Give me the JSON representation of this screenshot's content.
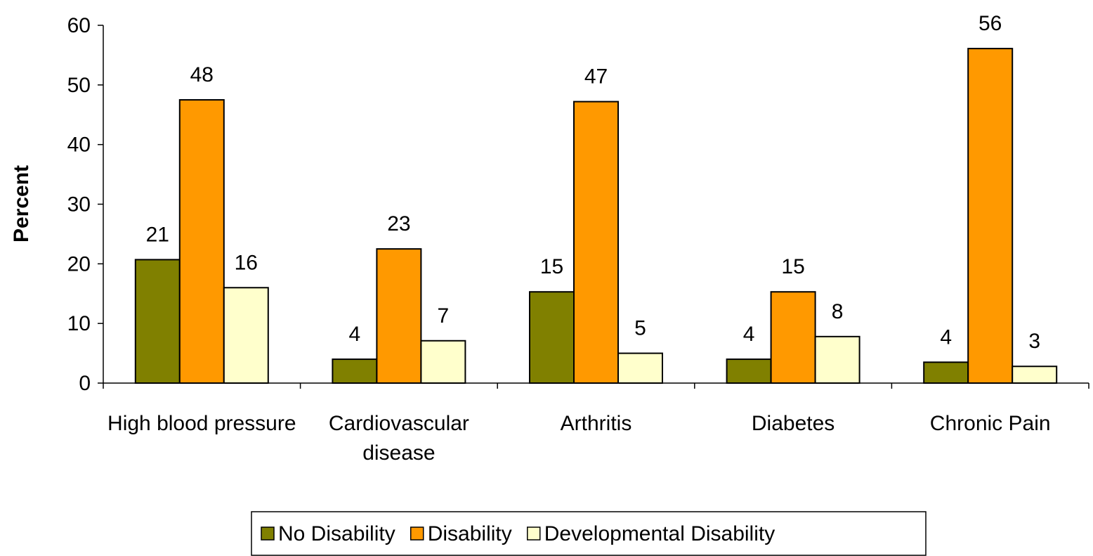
{
  "chart_data": {
    "type": "bar",
    "y_label": "Percent",
    "categories": [
      "High blood pressure",
      "Cardiovascular disease",
      "Arthritis",
      "Diabetes",
      "Chronic Pain"
    ],
    "series": [
      {
        "name": "No Disability",
        "color": "#808000",
        "values": [
          20.7,
          4,
          15.3,
          4,
          3.5
        ],
        "value_labels": [
          "21",
          "4",
          "15",
          "4",
          "4"
        ]
      },
      {
        "name": "Disability",
        "color": "#FF9900",
        "values": [
          47.5,
          22.5,
          47.2,
          15.3,
          56.1
        ],
        "value_labels": [
          "48",
          "23",
          "47",
          "15",
          "56"
        ]
      },
      {
        "name": "Developmental Disability",
        "color": "#FFFFCC",
        "values": [
          16,
          7.1,
          5,
          7.8,
          2.8
        ],
        "value_labels": [
          "16",
          "7",
          "5",
          "8",
          "3"
        ]
      }
    ],
    "ylim": [
      0,
      60
    ],
    "yticks": [
      0,
      10,
      20,
      30,
      40,
      50,
      60
    ],
    "grid": false,
    "legend": "bottom"
  }
}
